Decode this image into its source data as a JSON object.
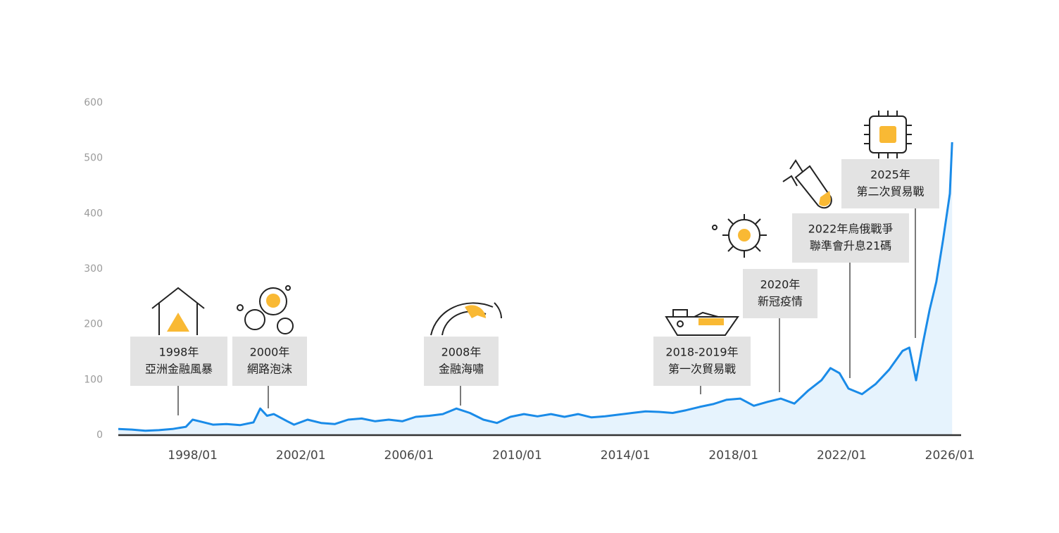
{
  "chart_data": {
    "type": "area",
    "x": [
      "1995/04",
      "1995/10",
      "1996/04",
      "1996/10",
      "1997/04",
      "1997/10",
      "1998/01",
      "1998/04",
      "1998/10",
      "1999/04",
      "1999/10",
      "2000/04",
      "2000/07",
      "2000/10",
      "2001/01",
      "2001/07",
      "2001/10",
      "2002/04",
      "2002/10",
      "2003/04",
      "2003/10",
      "2004/04",
      "2004/10",
      "2005/04",
      "2005/10",
      "2006/04",
      "2006/10",
      "2007/04",
      "2007/10",
      "2008/04",
      "2008/10",
      "2009/04",
      "2009/10",
      "2010/04",
      "2010/10",
      "2011/04",
      "2011/10",
      "2012/04",
      "2012/10",
      "2013/04",
      "2013/10",
      "2014/04",
      "2014/10",
      "2015/04",
      "2015/10",
      "2016/04",
      "2016/10",
      "2017/04",
      "2017/10",
      "2018/04",
      "2018/10",
      "2019/04",
      "2019/10",
      "2020/04",
      "2020/10",
      "2021/04",
      "2021/08",
      "2021/12",
      "2022/04",
      "2022/10",
      "2023/04",
      "2023/10",
      "2024/04",
      "2024/07",
      "2024/10",
      "2025/01",
      "2025/04",
      "2025/07",
      "2025/10",
      "2026/01",
      "2026/02"
    ],
    "values": [
      11,
      10,
      8,
      9,
      11,
      15,
      28,
      25,
      19,
      20,
      18,
      23,
      48,
      35,
      38,
      25,
      19,
      28,
      22,
      20,
      28,
      30,
      25,
      28,
      25,
      33,
      35,
      38,
      48,
      40,
      28,
      22,
      33,
      38,
      34,
      38,
      33,
      38,
      32,
      34,
      37,
      40,
      43,
      42,
      40,
      45,
      51,
      56,
      64,
      66,
      53,
      60,
      66,
      57,
      80,
      99,
      121,
      112,
      84,
      74,
      92,
      118,
      152,
      158,
      99,
      165,
      226,
      277,
      353,
      436,
      529
    ],
    "color": "#1a8be8",
    "fill_color": "#e6f3fd",
    "xlim": [
      "1995/04",
      "2026/06"
    ],
    "xticks": [
      "1998/01",
      "2002/01",
      "2006/01",
      "2010/01",
      "2014/01",
      "2018/01",
      "2022/01",
      "2026/01"
    ],
    "ylim": [
      0,
      600
    ],
    "yticks": [
      0,
      100,
      200,
      300,
      400,
      500,
      600
    ],
    "annotations": [
      {
        "lines": [
          "1998年",
          "亞洲金融風暴"
        ]
      },
      {
        "lines": [
          "2000年",
          "網路泡沫"
        ]
      },
      {
        "lines": [
          "2008年",
          "金融海嘯"
        ]
      },
      {
        "lines": [
          "2018-2019年",
          "第一次貿易戰"
        ]
      },
      {
        "lines": [
          "2020年",
          "新冠疫情"
        ]
      },
      {
        "lines": [
          "2022年烏俄戰爭",
          "聯準會升息21碼"
        ]
      },
      {
        "lines": [
          "2025年",
          "第二次貿易戰"
        ]
      }
    ]
  }
}
